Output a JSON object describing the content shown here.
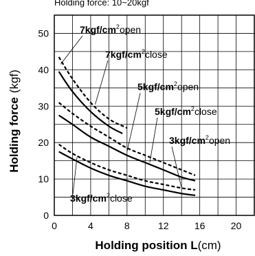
{
  "chart_data": {
    "type": "line",
    "subtitle": "Holding force: 10~20kgf",
    "xlabel_bold": "Holding position  L",
    "xlabel_unit": "(cm)",
    "ylabel_bold": "Holding force",
    "ylabel_unit": "(kgf)",
    "xlim": [
      0,
      22
    ],
    "ylim": [
      0,
      55
    ],
    "xticks": [
      0,
      4,
      8,
      12,
      16,
      20
    ],
    "yticks": [
      0,
      10,
      20,
      30,
      40,
      50
    ],
    "grid": true,
    "series": [
      {
        "name": "7kgf/cm²open",
        "style": "dashed",
        "x": [
          0.5,
          2,
          4,
          6,
          8
        ],
        "y": [
          43.5,
          37.5,
          31,
          26.5,
          24
        ]
      },
      {
        "name": "7kgf/cm²close",
        "style": "solid",
        "x": [
          0.5,
          2,
          4,
          6,
          7.5
        ],
        "y": [
          39.5,
          34,
          28.5,
          24.5,
          22.5
        ]
      },
      {
        "name": "5kgf/cm²open",
        "style": "dashed",
        "x": [
          0.5,
          2,
          4,
          6,
          8,
          10,
          12,
          14,
          15.5
        ],
        "y": [
          31,
          28,
          24.5,
          21.5,
          18.5,
          16.5,
          14.5,
          12.5,
          11
        ]
      },
      {
        "name": "5kgf/cm²close",
        "style": "solid",
        "x": [
          0.5,
          2,
          4,
          6,
          8,
          10,
          12,
          14,
          15.5
        ],
        "y": [
          27.5,
          25,
          21.5,
          19,
          16.5,
          14.5,
          12.5,
          10.5,
          9.5
        ]
      },
      {
        "name": "3kgf/cm²open",
        "style": "dashed",
        "x": [
          0.5,
          2,
          4,
          6,
          8,
          10,
          12,
          14,
          15.5
        ],
        "y": [
          19.5,
          17,
          14.5,
          12.5,
          11,
          9.5,
          8.5,
          7.5,
          7
        ]
      },
      {
        "name": "3kgf/cm²close",
        "style": "solid",
        "x": [
          0.5,
          2,
          4,
          6,
          8,
          10,
          12,
          14,
          15.5
        ],
        "y": [
          17.5,
          15.5,
          13,
          11,
          9.5,
          8,
          7,
          6,
          5.5
        ]
      }
    ],
    "annotations": [
      {
        "bold": "7kgf/cm",
        "sup": "2",
        "tail": "open",
        "series": 0
      },
      {
        "bold": "7kgf/cm",
        "sup": "2",
        "tail": "close",
        "series": 1
      },
      {
        "bold": "5kgf/cm",
        "sup": "2",
        "tail": "open",
        "series": 2
      },
      {
        "bold": "5kgf/cm",
        "sup": "2",
        "tail": "close",
        "series": 3
      },
      {
        "bold": "3kgf/cm",
        "sup": "2",
        "tail": "open",
        "series": 4
      },
      {
        "bold": "3kgf/cm",
        "sup": "2",
        "tail": "close",
        "series": 5
      }
    ]
  }
}
